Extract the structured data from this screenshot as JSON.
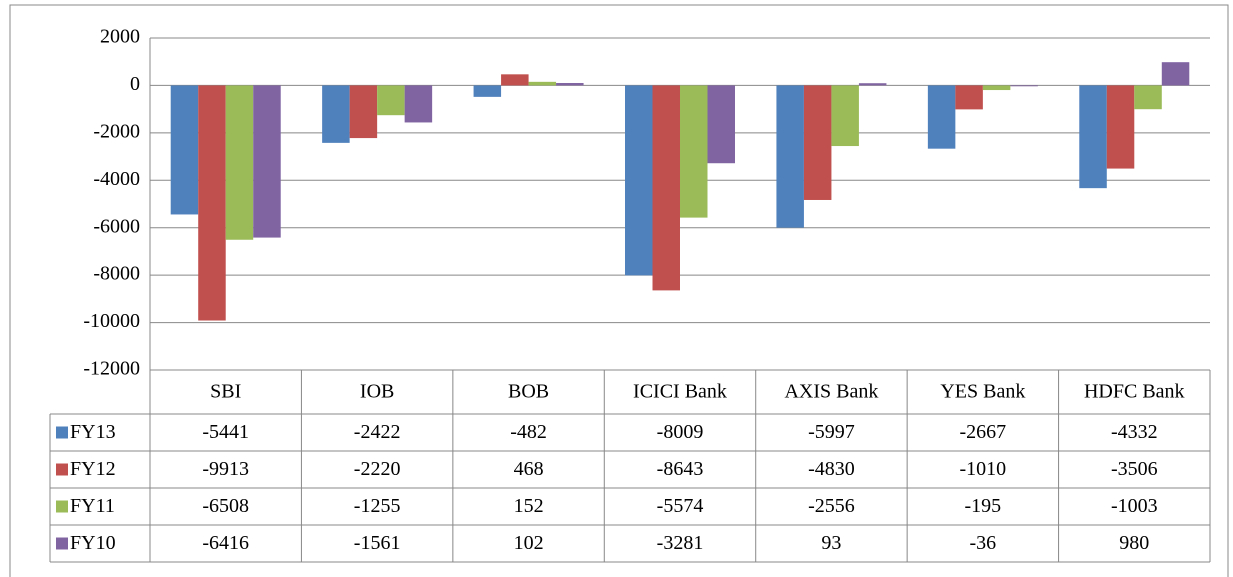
{
  "chart_data": {
    "type": "bar",
    "categories": [
      "SBI",
      "IOB",
      "BOB",
      "ICICI Bank",
      "AXIS Bank",
      "YES Bank",
      "HDFC Bank"
    ],
    "series": [
      {
        "name": "FY13",
        "color": "#4f81bd",
        "values": [
          -5441,
          -2422,
          -482,
          -8009,
          -5997,
          -2667,
          -4332
        ]
      },
      {
        "name": "FY12",
        "color": "#c0504d",
        "values": [
          -9913,
          -2220,
          468,
          -8643,
          -4830,
          -1010,
          -3506
        ]
      },
      {
        "name": "FY11",
        "color": "#9bbb59",
        "values": [
          -6508,
          -1255,
          152,
          -5574,
          -2556,
          -195,
          -1003
        ]
      },
      {
        "name": "FY10",
        "color": "#8064a2",
        "values": [
          -6416,
          -1561,
          102,
          -3281,
          93,
          -36,
          980
        ]
      }
    ],
    "ylim": [
      -12000,
      2000
    ],
    "yticks": [
      -12000,
      -10000,
      -8000,
      -6000,
      -4000,
      -2000,
      0,
      2000
    ],
    "grid": true
  }
}
